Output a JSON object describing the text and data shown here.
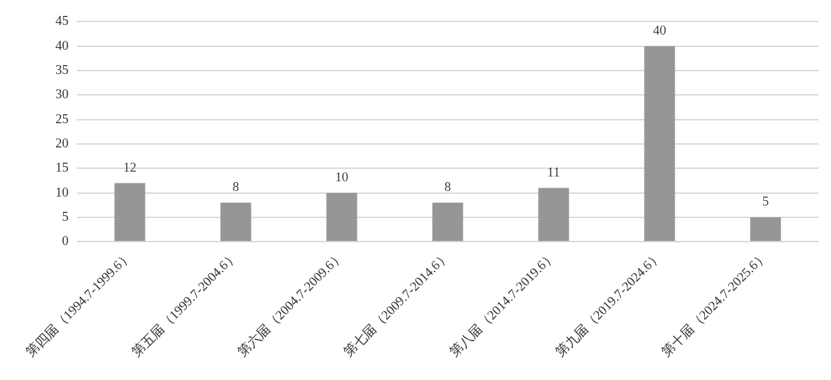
{
  "chart_data": {
    "type": "bar",
    "categories": [
      "第四届（1994.7-1999.6）",
      "第五届（1999.7-2004.6）",
      "第六届（2004.7-2009.6）",
      "第七届（2009.7-2014.6）",
      "第八届（2014.7-2019.6）",
      "第九届（2019.7-2024.6）",
      "第十届（2024.7-2025.6）"
    ],
    "values": [
      12,
      8,
      10,
      8,
      11,
      40,
      5
    ],
    "color": "#969696",
    "ylim": [
      0,
      45
    ],
    "yticks": [
      0,
      5,
      10,
      15,
      20,
      25,
      30,
      35,
      40,
      45
    ],
    "grid": "y",
    "legend": false,
    "data_labels": true
  }
}
